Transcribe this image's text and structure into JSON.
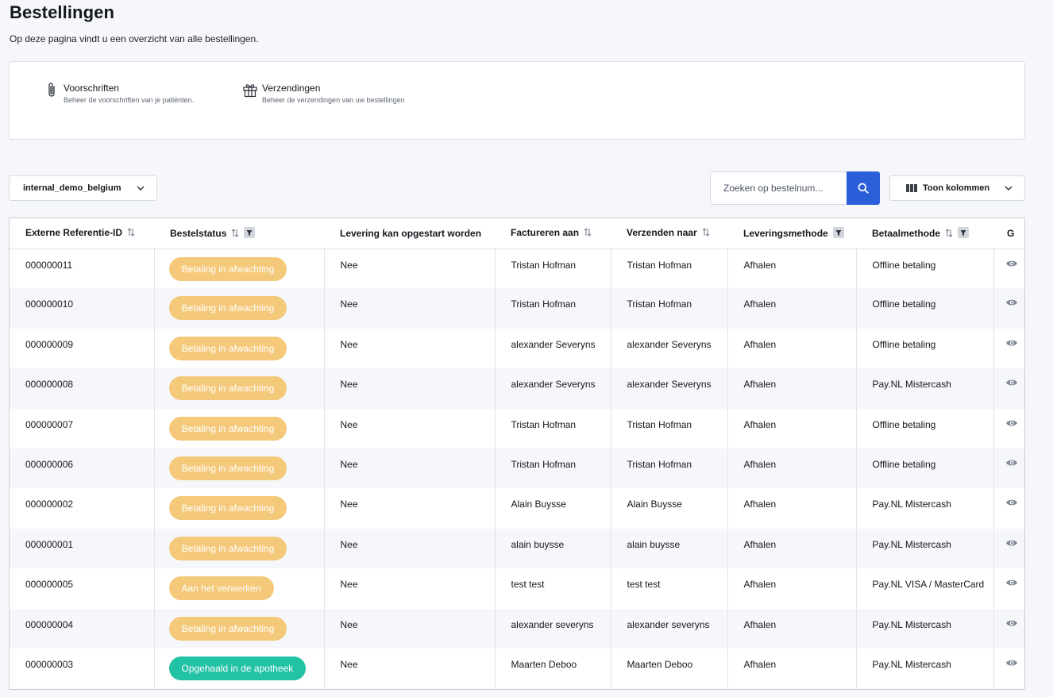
{
  "header": {
    "title": "Bestellingen",
    "description": "Op deze pagina vindt u een overzicht van alle bestellingen."
  },
  "shortcuts": [
    {
      "icon": "paperclip-icon",
      "title": "Voorschriften",
      "description": "Beheer de voorschriften van je patiënten."
    },
    {
      "icon": "gift-icon",
      "title": "Verzendingen",
      "description": "Beheer de verzendingen van uw bestellingen"
    }
  ],
  "toolbar": {
    "store_value": "internal_demo_belgium",
    "search_placeholder": "Zoeken op bestelnum...",
    "columns_label": "Toon kolommen"
  },
  "colors": {
    "primary": "#2b5fd9",
    "status_pending": "#f5c97a",
    "status_done": "#22c2a4"
  },
  "table": {
    "columns": [
      {
        "label": "Externe Referentie-ID",
        "sortable": true,
        "filterable": false
      },
      {
        "label": "Bestelstatus",
        "sortable": true,
        "filterable": true
      },
      {
        "label": "Levering kan opgestart worden",
        "sortable": false,
        "filterable": false
      },
      {
        "label": "Factureren aan",
        "sortable": true,
        "filterable": false
      },
      {
        "label": "Verzenden naar",
        "sortable": true,
        "filterable": false
      },
      {
        "label": "Leveringsmethode",
        "sortable": false,
        "filterable": true
      },
      {
        "label": "Betaalmethode",
        "sortable": true,
        "filterable": true
      },
      {
        "label": "G",
        "sortable": false,
        "filterable": false
      }
    ],
    "rows": [
      {
        "id": "000000011",
        "status": "Betaling in afwachting",
        "status_type": "pending",
        "delivery": "Nee",
        "bill_to": "Tristan Hofman",
        "ship_to": "Tristan Hofman",
        "method": "Afhalen",
        "payment": "Offline betaling"
      },
      {
        "id": "000000010",
        "status": "Betaling in afwachting",
        "status_type": "pending",
        "delivery": "Nee",
        "bill_to": "Tristan Hofman",
        "ship_to": "Tristan Hofman",
        "method": "Afhalen",
        "payment": "Offline betaling"
      },
      {
        "id": "000000009",
        "status": "Betaling in afwachting",
        "status_type": "pending",
        "delivery": "Nee",
        "bill_to": "alexander Severyns",
        "ship_to": "alexander Severyns",
        "method": "Afhalen",
        "payment": "Offline betaling"
      },
      {
        "id": "000000008",
        "status": "Betaling in afwachting",
        "status_type": "pending",
        "delivery": "Nee",
        "bill_to": "alexander Severyns",
        "ship_to": "alexander Severyns",
        "method": "Afhalen",
        "payment": "Pay.NL Mistercash"
      },
      {
        "id": "000000007",
        "status": "Betaling in afwachting",
        "status_type": "pending",
        "delivery": "Nee",
        "bill_to": "Tristan Hofman",
        "ship_to": "Tristan Hofman",
        "method": "Afhalen",
        "payment": "Offline betaling"
      },
      {
        "id": "000000006",
        "status": "Betaling in afwachting",
        "status_type": "pending",
        "delivery": "Nee",
        "bill_to": "Tristan Hofman",
        "ship_to": "Tristan Hofman",
        "method": "Afhalen",
        "payment": "Offline betaling"
      },
      {
        "id": "000000002",
        "status": "Betaling in afwachting",
        "status_type": "pending",
        "delivery": "Nee",
        "bill_to": "Alain Buysse",
        "ship_to": "Alain Buysse",
        "method": "Afhalen",
        "payment": "Pay.NL Mistercash"
      },
      {
        "id": "000000001",
        "status": "Betaling in afwachting",
        "status_type": "pending",
        "delivery": "Nee",
        "bill_to": "alain buysse",
        "ship_to": "alain buysse",
        "method": "Afhalen",
        "payment": "Pay.NL Mistercash"
      },
      {
        "id": "000000005",
        "status": "Aan het verwerken",
        "status_type": "processing",
        "delivery": "Nee",
        "bill_to": "test test",
        "ship_to": "test test",
        "method": "Afhalen",
        "payment": "Pay.NL VISA / MasterCard"
      },
      {
        "id": "000000004",
        "status": "Betaling in afwachting",
        "status_type": "pending",
        "delivery": "Nee",
        "bill_to": "alexander severyns",
        "ship_to": "alexander severyns",
        "method": "Afhalen",
        "payment": "Pay.NL Mistercash"
      },
      {
        "id": "000000003",
        "status": "Opgehaald in de apotheek",
        "status_type": "done",
        "delivery": "Nee",
        "bill_to": "Maarten Deboo",
        "ship_to": "Maarten Deboo",
        "method": "Afhalen",
        "payment": "Pay.NL Mistercash"
      }
    ]
  }
}
